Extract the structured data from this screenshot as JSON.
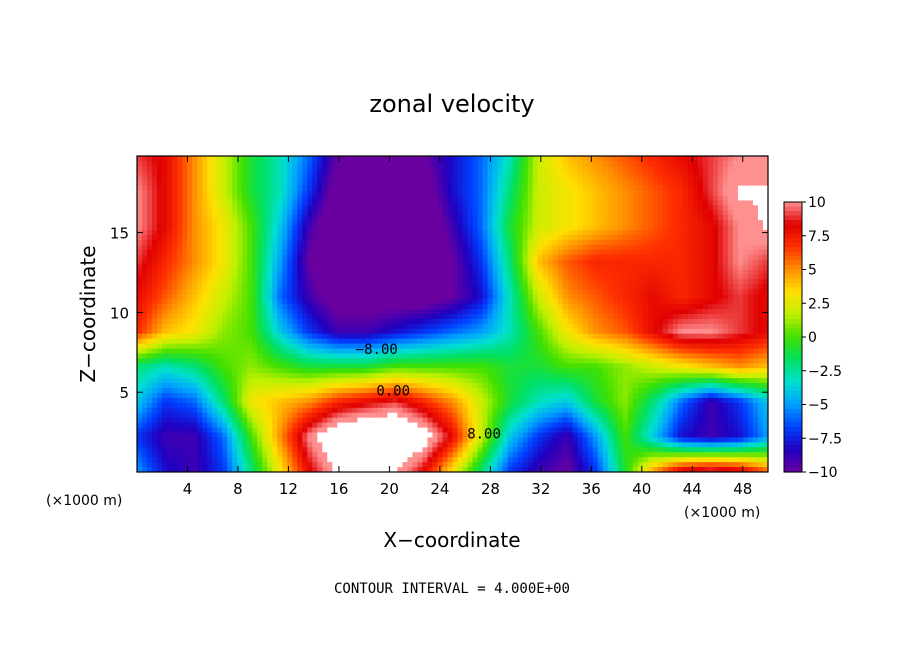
{
  "chart_data": {
    "type": "heatmap",
    "title": "zonal velocity",
    "xlabel": "X−coordinate",
    "ylabel": "Z−coordinate",
    "x_unit_left": "(×1000 m)",
    "x_unit_right": "(×1000 m)",
    "footer": "CONTOUR INTERVAL = 4.000E+00",
    "xlim": [
      0,
      50
    ],
    "ylim": [
      0,
      19.8
    ],
    "x_ticks": [
      4,
      8,
      12,
      16,
      20,
      24,
      28,
      32,
      36,
      40,
      44,
      48
    ],
    "y_ticks": [
      5,
      10,
      15
    ],
    "colorbar": {
      "range": [
        -10,
        10
      ],
      "ticks": [
        10,
        7.5,
        5,
        2.5,
        0,
        -2.5,
        -5,
        -7.5,
        -10
      ],
      "tick_labels": [
        "10",
        "7.5",
        "5",
        "2.5",
        "0",
        "−2.5",
        "−5",
        "−7.5",
        "−10"
      ],
      "saturated_high_color": "#ffffff",
      "colors": [
        "#6a00a0",
        "#2000c0",
        "#0040ff",
        "#00a0ff",
        "#00e0d0",
        "#00e060",
        "#40e000",
        "#c0f000",
        "#ffe000",
        "#ff9000",
        "#ff3000",
        "#e00000",
        "#ff9090"
      ]
    },
    "contour_labels": [
      {
        "text": "−8.00",
        "x": 19.0,
        "y": 7.4
      },
      {
        "text": "0.00",
        "x": 20.3,
        "y": 4.8
      },
      {
        "text": "8.00",
        "x": 27.5,
        "y": 2.1
      }
    ],
    "grid": [
      [
        -5,
        -8,
        -9,
        -7,
        -2,
        3,
        8,
        11,
        12,
        11,
        8,
        3,
        -2,
        -7,
        -9,
        -10,
        -7,
        -1,
        5,
        9,
        10,
        9,
        6
      ],
      [
        -7,
        -9,
        -9,
        -6,
        0,
        5,
        10,
        13,
        14,
        14,
        12,
        8,
        2,
        -4,
        -7,
        -9,
        -5,
        0,
        -4,
        -8,
        -9,
        -8,
        -5
      ],
      [
        -4,
        -7,
        -6,
        -2,
        3,
        4,
        5,
        7,
        8,
        9,
        7,
        5,
        2,
        -1,
        -3,
        -4,
        -1,
        1,
        -2,
        -6,
        -9,
        -7,
        -4
      ],
      [
        -2,
        -3,
        -2,
        0,
        1,
        0,
        -1,
        -1,
        -1,
        0,
        0,
        0,
        0,
        -1,
        -1,
        0,
        0,
        1,
        2,
        3,
        4,
        5,
        4
      ],
      [
        7,
        4,
        3,
        1,
        0,
        -4,
        -7,
        -9,
        -9,
        -8,
        -7,
        -6,
        -5,
        -3,
        0,
        3,
        5,
        6,
        8,
        10,
        10,
        9,
        8
      ],
      [
        8,
        6,
        4,
        2,
        0,
        -6,
        -9,
        -11,
        -11,
        -11,
        -11,
        -10,
        -8,
        -3,
        2,
        5,
        6,
        7,
        8,
        7,
        8,
        9,
        8
      ],
      [
        9,
        7,
        5,
        3,
        0,
        -5,
        -10,
        -12,
        -12,
        -12,
        -12,
        -10,
        -7,
        -2,
        4,
        6,
        7,
        7,
        7,
        7,
        8,
        10,
        9
      ],
      [
        10,
        8,
        5,
        3,
        0,
        -4,
        -9,
        -12,
        -13,
        -13,
        -12,
        -9,
        -6,
        -1,
        2,
        3,
        4,
        5,
        6,
        7,
        8,
        10,
        11
      ],
      [
        10,
        8,
        5,
        2,
        -1,
        -3,
        -7,
        -11,
        -12,
        -12,
        -11,
        -8,
        -6,
        -2,
        2,
        3,
        4,
        5,
        6,
        7,
        9,
        11,
        11
      ],
      [
        9,
        8,
        5,
        2,
        -1,
        -3,
        -6,
        -10,
        -12,
        -12,
        -10,
        -8,
        -6,
        -3,
        2,
        4,
        5,
        6,
        7,
        8,
        9,
        10,
        10
      ]
    ]
  }
}
